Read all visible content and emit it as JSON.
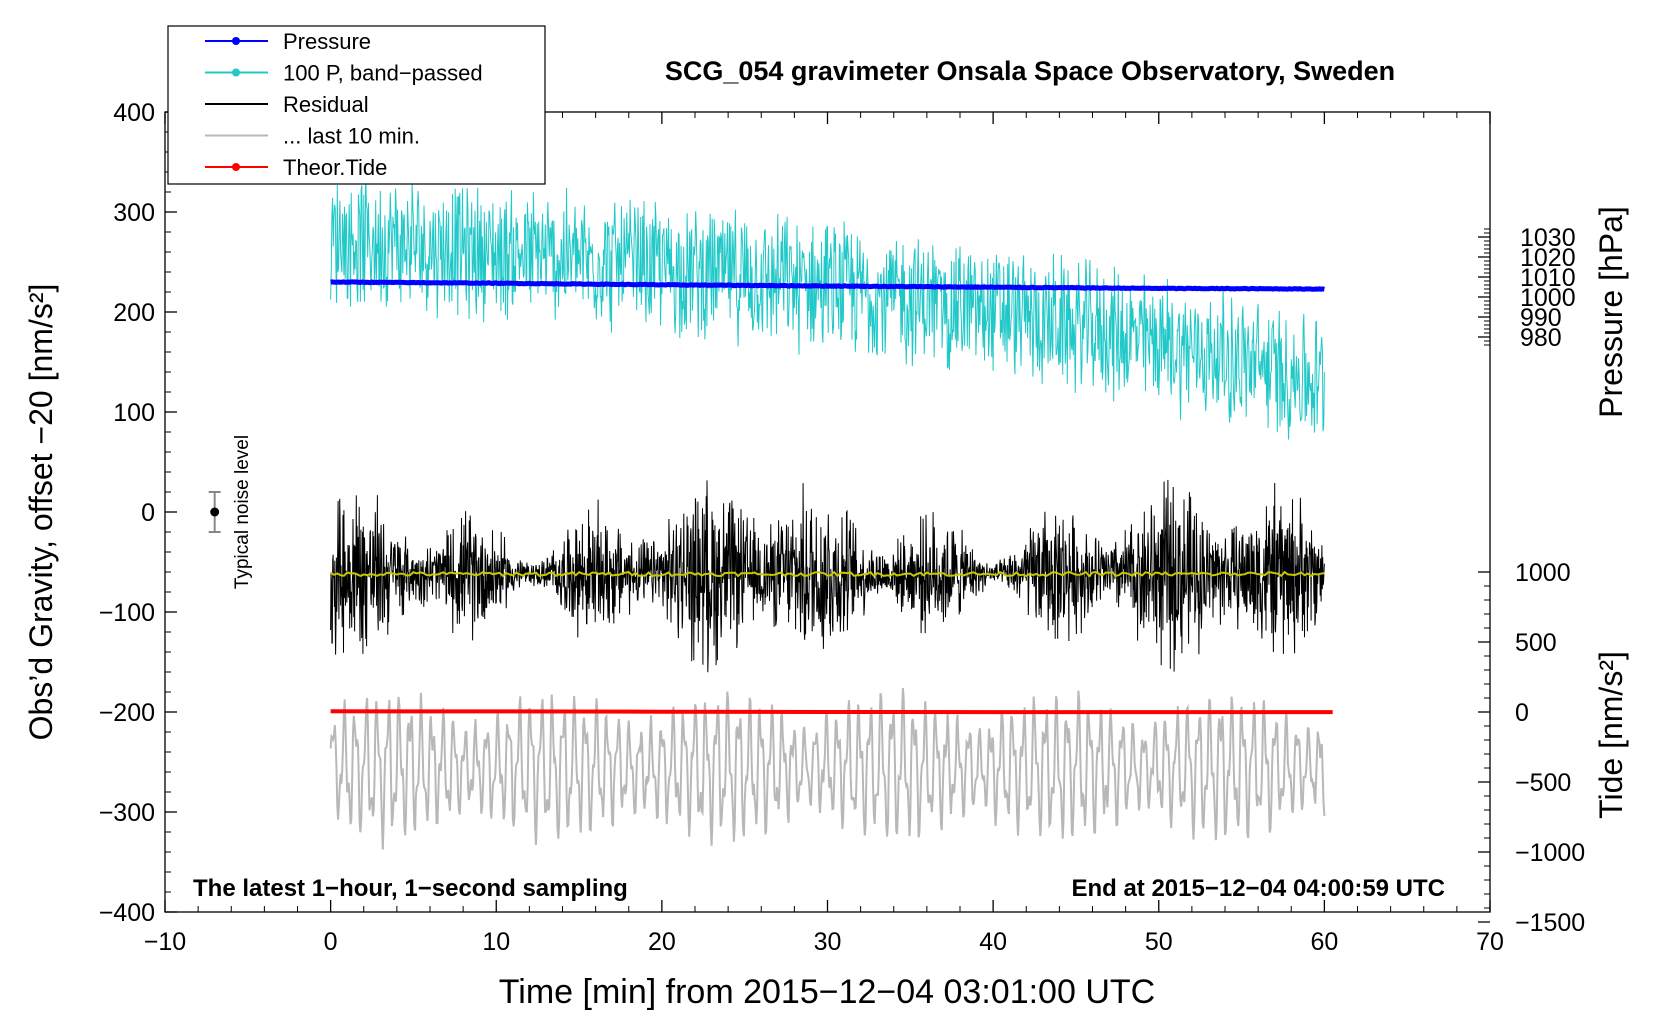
{
  "chart_data": {
    "type": "line",
    "title": "SCG_054 gravimeter Onsala Space Observatory, Sweden",
    "xlabel": "Time [min] from 2015−12−04 03:01:00 UTC",
    "ylabel_left": "Obs’d Gravity, offset −20 [nm/s²]",
    "ylabel_right_pressure": "Pressure [hPa]",
    "ylabel_right_tide": "Tide [nm/s²]",
    "xlim": [
      -10,
      70
    ],
    "ylim_left": [
      -400,
      400
    ],
    "x_ticks": [
      "−10",
      "0",
      "10",
      "20",
      "30",
      "40",
      "50",
      "60",
      "70"
    ],
    "y_ticks_left": [
      "400",
      "300",
      "200",
      "100",
      "0",
      "−100",
      "−200",
      "−300",
      "−400"
    ],
    "pressure_ticks": [
      "1030",
      "1020",
      "1010",
      "1000",
      "990",
      "980"
    ],
    "pressure_range_hpa": [
      975,
      1035
    ],
    "tide_ticks": [
      "1000",
      "500",
      "0",
      "−500",
      "−1000",
      "−1500"
    ],
    "tide_range": [
      -1500,
      1000
    ],
    "annotation_left": "The latest 1−hour, 1−second sampling",
    "annotation_right": "End at 2015−12−04 04:00:59 UTC",
    "noise_label": "Typical noise level",
    "noise_bar": {
      "x": -7,
      "y": 0,
      "half_range": 20
    },
    "legend": [
      {
        "label": "Pressure",
        "color": "#0000ff",
        "marker": true
      },
      {
        "label": "100 P, band−passed",
        "color": "#20c8c8",
        "marker": true
      },
      {
        "label": "Residual",
        "color": "#000000",
        "marker": false
      },
      {
        "label": "... last 10 min.",
        "color": "#b8b8b8",
        "marker": false
      },
      {
        "label": "Theor.Tide",
        "color": "#ff0000",
        "marker": true
      }
    ],
    "series": [
      {
        "name": "Pressure",
        "axis": "pressure",
        "x": [
          0,
          10,
          20,
          30,
          40,
          50,
          60
        ],
        "values": [
          1007.5,
          1006.9,
          1006.1,
          1005.5,
          1004.9,
          1004.3,
          1004.0
        ]
      },
      {
        "name": "100 P, band−passed",
        "axis": "left",
        "x": [
          0,
          10,
          20,
          30,
          40,
          50,
          60
        ],
        "center": [
          275,
          260,
          245,
          225,
          200,
          170,
          130
        ],
        "amplitude": 75
      },
      {
        "name": "Residual",
        "axis": "left",
        "x": [
          0,
          10,
          20,
          30,
          40,
          50,
          60
        ],
        "center": [
          -62,
          -62,
          -62,
          -62,
          -62,
          -62,
          -62
        ],
        "amplitude": 75
      },
      {
        "name": "Residual smoothed",
        "axis": "left",
        "x": [
          0,
          60
        ],
        "values": [
          -62,
          -62
        ],
        "color": "#c8c800"
      },
      {
        "name": "... last 10 min.",
        "axis": "left",
        "x": [
          0,
          60
        ],
        "center": [
          -255,
          -255
        ],
        "amplitude": 70
      },
      {
        "name": "Theor.Tide",
        "axis": "tide",
        "x": [
          0,
          10,
          20,
          30,
          40,
          50,
          60.5
        ],
        "values": [
          5,
          4,
          2,
          0,
          -1,
          -1,
          -1
        ]
      }
    ],
    "colors": {
      "pressure": "#0000ff",
      "bandpassed": "#20c8c8",
      "residual": "#000000",
      "smoothed": "#c8c800",
      "last10": "#b8b8b8",
      "tide": "#ff0000"
    }
  }
}
